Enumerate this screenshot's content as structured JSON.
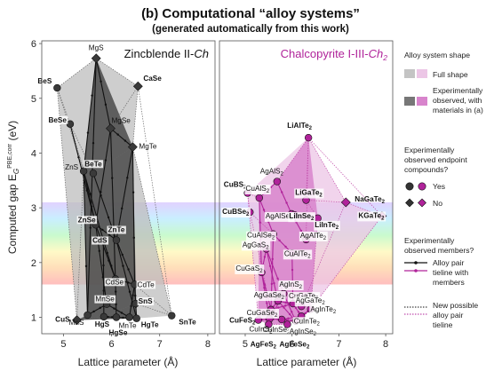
{
  "title": "(b) Computational “alloy systems”",
  "subtitle": "(generated automatically from this work)",
  "chart_data": [
    {
      "type": "scatter",
      "panel_title": "Zincblende II-Ch",
      "panel_title_main": "Zincblende II-",
      "panel_title_ital": "Ch",
      "panel_title_sub": "",
      "xlabel": "Lattice parameter (Å)",
      "ylabel": "Computed gap E",
      "ylabel_sub": "G",
      "ylabel_sup": "PBE,corr",
      "ylabel_unit": " (eV)",
      "xlim": [
        4.55,
        8.15
      ],
      "ylim": [
        0.7,
        6.05
      ],
      "xticks": [
        "5",
        "6",
        "7",
        "8"
      ],
      "yticks": [
        "1",
        "2",
        "3",
        "4",
        "5",
        "6"
      ],
      "grid": false,
      "shape_color": "#5a5a5a",
      "full_shape_color": "#bdbdbd",
      "observed_shape_color": "#4a4a4a",
      "points": [
        {
          "name": "MgS",
          "x": 5.68,
          "y": 5.73,
          "marker": "diamond",
          "bold": false,
          "label": "MgS"
        },
        {
          "name": "BeS",
          "x": 4.87,
          "y": 5.19,
          "marker": "circle",
          "bold": true,
          "label": "BeS"
        },
        {
          "name": "CaSe",
          "x": 6.55,
          "y": 5.22,
          "marker": "diamond",
          "bold": true,
          "label": "CaSe"
        },
        {
          "name": "BeSe",
          "x": 5.14,
          "y": 4.53,
          "marker": "circle",
          "bold": true,
          "label": "BeSe"
        },
        {
          "name": "MgSe",
          "x": 5.98,
          "y": 4.45,
          "marker": "diamond",
          "bold": false,
          "label": "MgSe"
        },
        {
          "name": "MgTe",
          "x": 6.44,
          "y": 4.11,
          "marker": "diamond",
          "bold": false,
          "label": "MgTe"
        },
        {
          "name": "BeTe",
          "x": 5.62,
          "y": 3.63,
          "marker": "circle",
          "bold": true,
          "label": "BeTe"
        },
        {
          "name": "ZnS",
          "x": 5.42,
          "y": 3.67,
          "marker": "circle",
          "bold": false,
          "label": "ZnS"
        },
        {
          "name": "ZnSe",
          "x": 5.67,
          "y": 2.69,
          "marker": "circle",
          "bold": true,
          "label": "ZnSe"
        },
        {
          "name": "ZnTe",
          "x": 6.1,
          "y": 2.41,
          "marker": "circle",
          "bold": true,
          "label": "ZnTe"
        },
        {
          "name": "CdS",
          "x": 5.83,
          "y": 2.41,
          "marker": "circle",
          "bold": true,
          "label": "CdS"
        },
        {
          "name": "CdTe",
          "x": 6.48,
          "y": 1.6,
          "marker": "circle",
          "bold": false,
          "label": "CdTe"
        },
        {
          "name": "CdSe",
          "x": 6.08,
          "y": 1.7,
          "marker": "circle",
          "bold": false,
          "label": "CdSe"
        },
        {
          "name": "MnSe",
          "x": 5.9,
          "y": 1.24,
          "marker": "circle",
          "bold": false,
          "label": "MnSe"
        },
        {
          "name": "SnS",
          "x": 6.5,
          "y": 1.25,
          "marker": "circle",
          "bold": true,
          "label": "SnS"
        },
        {
          "name": "CuS",
          "x": 5.28,
          "y": 0.95,
          "marker": "diamond",
          "bold": true,
          "label": "CuS"
        },
        {
          "name": "MnS",
          "x": 5.5,
          "y": 1.04,
          "marker": "circle",
          "bold": false,
          "label": "MnS"
        },
        {
          "name": "HgS",
          "x": 5.84,
          "y": 1.01,
          "marker": "circle",
          "bold": true,
          "label": "HgS"
        },
        {
          "name": "HgSe",
          "x": 6.1,
          "y": 1.0,
          "marker": "circle",
          "bold": true,
          "label": "HgSe"
        },
        {
          "name": "MnTe",
          "x": 6.37,
          "y": 1.0,
          "marker": "circle",
          "bold": false,
          "label": "MnTe"
        },
        {
          "name": "HgTe",
          "x": 6.52,
          "y": 0.98,
          "marker": "circle",
          "bold": true,
          "label": "HgTe"
        },
        {
          "name": "SnTe",
          "x": 7.25,
          "y": 1.03,
          "marker": "circle",
          "bold": true,
          "label": "SnTe"
        }
      ],
      "full_shape": [
        "MgS",
        "CaSe",
        "MgTe",
        "SnTe",
        "HgTe",
        "CuS",
        "BeS"
      ],
      "observed_shape": [
        "MgS",
        "MgTe",
        "HgTe",
        "CuS",
        "MnS",
        "ZnS"
      ],
      "tielines": [
        [
          "MgS",
          "MgSe"
        ],
        [
          "MgSe",
          "MgTe"
        ],
        [
          "MgS",
          "MnS"
        ],
        [
          "ZnS",
          "ZnSe"
        ],
        [
          "ZnSe",
          "ZnTe"
        ],
        [
          "ZnS",
          "CdS"
        ],
        [
          "CdS",
          "CdSe"
        ],
        [
          "CdSe",
          "CdTe"
        ],
        [
          "ZnTe",
          "CdTe"
        ],
        [
          "ZnSe",
          "CdSe"
        ],
        [
          "ZnTe",
          "HgTe"
        ],
        [
          "CdTe",
          "HgTe"
        ],
        [
          "HgS",
          "HgSe"
        ],
        [
          "HgSe",
          "HgTe"
        ],
        [
          "CdS",
          "HgS"
        ],
        [
          "CdSe",
          "HgSe"
        ],
        [
          "MnS",
          "MnSe"
        ],
        [
          "MnSe",
          "MnTe"
        ],
        [
          "ZnSe",
          "MnSe"
        ],
        [
          "MgTe",
          "CdTe"
        ],
        [
          "MgTe",
          "ZnTe"
        ],
        [
          "MgSe",
          "ZnSe"
        ],
        [
          "ZnS",
          "MnS"
        ],
        [
          "CdTe",
          "MnTe"
        ],
        [
          "BeTe",
          "ZnTe"
        ],
        [
          "BeSe",
          "ZnSe"
        ],
        [
          "MgSe",
          "CdSe"
        ],
        [
          "MgS",
          "ZnS"
        ]
      ],
      "possible": [
        [
          "BeS",
          "BeSe"
        ],
        [
          "BeSe",
          "BeTe"
        ],
        [
          "BeS",
          "MgS"
        ],
        [
          "CaSe",
          "MgSe"
        ],
        [
          "CaSe",
          "MgTe"
        ],
        [
          "BeS",
          "ZnS"
        ],
        [
          "BeTe",
          "MgTe"
        ],
        [
          "CaSe",
          "SnTe"
        ],
        [
          "SnS",
          "SnTe"
        ],
        [
          "CuS",
          "HgS"
        ],
        [
          "BeS",
          "CuS"
        ],
        [
          "MgTe",
          "SnTe"
        ],
        [
          "CdTe",
          "SnTe"
        ],
        [
          "BeSe",
          "CdSe"
        ],
        [
          "MgS",
          "CaSe"
        ],
        [
          "BeTe",
          "CdTe"
        ],
        [
          "CuS",
          "ZnS"
        ],
        [
          "SnS",
          "HgS"
        ]
      ]
    },
    {
      "type": "scatter",
      "panel_title": "Chalcopyrite I-III-Ch2",
      "panel_title_main": "Chalcopyrite I-III-",
      "panel_title_ital": "Ch",
      "panel_title_sub": "2",
      "xlabel": "Lattice parameter (Å)",
      "xlim": [
        4.45,
        8.15
      ],
      "ylim": [
        0.7,
        6.05
      ],
      "xticks": [
        "5",
        "6",
        "7",
        "8"
      ],
      "grid": false,
      "shape_color": "#b0239a",
      "full_shape_color": "#ecc6e6",
      "observed_shape_color": "#d884cc",
      "points": [
        {
          "name": "LiAlTe2",
          "x": 6.35,
          "y": 4.28,
          "marker": "circle",
          "bold": true,
          "label": "LiAlTe",
          "sub": "2"
        },
        {
          "name": "AgAlS2",
          "x": 5.68,
          "y": 3.48,
          "marker": "circle",
          "bold": false,
          "label": "AgAlS",
          "sub": "2"
        },
        {
          "name": "CuBS2",
          "x": 5.05,
          "y": 3.27,
          "marker": "circle",
          "bold": true,
          "label": "CuBS",
          "sub": "2"
        },
        {
          "name": "CuAlS2",
          "x": 5.3,
          "y": 3.18,
          "marker": "circle",
          "bold": false,
          "label": "CuAlS",
          "sub": "2"
        },
        {
          "name": "LiGaTe2",
          "x": 6.3,
          "y": 3.14,
          "marker": "circle",
          "bold": true,
          "label": "LiGaTe",
          "sub": "2"
        },
        {
          "name": "NaGaTe2",
          "x": 7.15,
          "y": 3.1,
          "marker": "diamond",
          "bold": true,
          "label": "NaGaTe",
          "sub": "2"
        },
        {
          "name": "CuBSe2",
          "x": 5.1,
          "y": 2.92,
          "marker": "circle",
          "bold": true,
          "label": "CuBSe",
          "sub": "2"
        },
        {
          "name": "AgAlSe2",
          "x": 5.99,
          "y": 2.89,
          "marker": "circle",
          "bold": false,
          "label": "AgAlSe",
          "sub": "2"
        },
        {
          "name": "LiInSe2",
          "x": 6.05,
          "y": 2.87,
          "marker": "circle",
          "bold": true,
          "label": "LiInSe",
          "sub": "2"
        },
        {
          "name": "LiInTe2",
          "x": 6.55,
          "y": 2.81,
          "marker": "circle",
          "bold": true,
          "label": "LiInTe",
          "sub": "2"
        },
        {
          "name": "KGaTe2",
          "x": 7.92,
          "y": 2.85,
          "marker": "diamond",
          "bold": true,
          "label": "KGaTe",
          "sub": "2"
        },
        {
          "name": "CuAlSe2",
          "x": 5.6,
          "y": 2.52,
          "marker": "circle",
          "bold": false,
          "label": "CuAlSe",
          "sub": "2"
        },
        {
          "name": "AgAlTe2",
          "x": 6.3,
          "y": 2.42,
          "marker": "circle",
          "bold": false,
          "label": "AgAlTe",
          "sub": "2"
        },
        {
          "name": "AgGaS2",
          "x": 5.45,
          "y": 2.25,
          "marker": "circle",
          "bold": false,
          "label": "AgGaS",
          "sub": "2"
        },
        {
          "name": "CuAlTe2",
          "x": 6.0,
          "y": 2.17,
          "marker": "circle",
          "bold": false,
          "label": "CuAlTe",
          "sub": "2"
        },
        {
          "name": "CuGaS2",
          "x": 5.35,
          "y": 1.82,
          "marker": "circle",
          "bold": false,
          "label": "CuGaS",
          "sub": "2"
        },
        {
          "name": "AgInS2",
          "x": 5.82,
          "y": 1.43,
          "marker": "circle",
          "bold": false,
          "label": "AgInS",
          "sub": "2"
        },
        {
          "name": "CuGaTe2",
          "x": 6.02,
          "y": 1.25,
          "marker": "circle",
          "bold": false,
          "label": "CuGaTe",
          "sub": "2"
        },
        {
          "name": "AgGaSe2",
          "x": 5.7,
          "y": 1.3,
          "marker": "circle",
          "bold": false,
          "label": "AgGaSe",
          "sub": "2"
        },
        {
          "name": "AgGaTe2",
          "x": 6.2,
          "y": 1.2,
          "marker": "circle",
          "bold": false,
          "label": "AgGaTe",
          "sub": "2"
        },
        {
          "name": "CuGaSe2",
          "x": 5.55,
          "y": 1.14,
          "marker": "circle",
          "bold": false,
          "label": "CuGaSe",
          "sub": "2"
        },
        {
          "name": "AgInTe2",
          "x": 6.4,
          "y": 1.15,
          "marker": "circle",
          "bold": false,
          "label": "AgInTe",
          "sub": "2"
        },
        {
          "name": "CuInTe2",
          "x": 6.2,
          "y": 1.02,
          "marker": "circle",
          "bold": false,
          "label": "CuInTe",
          "sub": "2"
        },
        {
          "name": "CuFeS2",
          "x": 5.28,
          "y": 0.95,
          "marker": "circle",
          "bold": true,
          "label": "CuFeS",
          "sub": "2"
        },
        {
          "name": "CuInS2",
          "x": 5.52,
          "y": 0.97,
          "marker": "circle",
          "bold": false,
          "label": "CuInS",
          "sub": "2"
        },
        {
          "name": "CuInSe2",
          "x": 5.78,
          "y": 0.96,
          "marker": "circle",
          "bold": false,
          "label": "CuInSe",
          "sub": "2"
        },
        {
          "name": "AgInSe2",
          "x": 6.08,
          "y": 0.93,
          "marker": "circle",
          "bold": false,
          "label": "AgInSe",
          "sub": "2"
        },
        {
          "name": "AgFeS2",
          "x": 5.5,
          "y": 0.87,
          "marker": "circle",
          "bold": true,
          "label": "AgFeS",
          "sub": "2"
        },
        {
          "name": "AgFeSe2",
          "x": 5.9,
          "y": 0.87,
          "marker": "circle",
          "bold": true,
          "label": "AgFeSe",
          "sub": "2"
        }
      ],
      "full_shape": [
        "LiAlTe2",
        "NaGaTe2",
        "KGaTe2",
        "AgInTe2",
        "AgFeSe2",
        "AgFeS2",
        "CuFeS2",
        "CuBS2"
      ],
      "observed_shape": [
        "AgAlS2",
        "LiAlTe2",
        "LiInTe2",
        "AgInTe2",
        "AgFeSe2",
        "AgFeS2",
        "CuFeS2",
        "CuAlS2"
      ],
      "tielines": [
        [
          "CuAlS2",
          "CuAlSe2"
        ],
        [
          "CuAlSe2",
          "CuAlTe2"
        ],
        [
          "CuGaS2",
          "CuGaSe2"
        ],
        [
          "CuGaSe2",
          "CuGaTe2"
        ],
        [
          "CuInS2",
          "CuInSe2"
        ],
        [
          "CuInSe2",
          "CuInTe2"
        ],
        [
          "AgGaS2",
          "AgGaSe2"
        ],
        [
          "AgGaSe2",
          "AgGaTe2"
        ],
        [
          "AgInS2",
          "AgInSe2"
        ],
        [
          "AgInSe2",
          "AgInTe2"
        ],
        [
          "AgAlS2",
          "AgAlSe2"
        ],
        [
          "AgAlSe2",
          "AgAlTe2"
        ],
        [
          "CuAlS2",
          "CuGaS2"
        ],
        [
          "CuGaS2",
          "CuInS2"
        ],
        [
          "CuAlSe2",
          "CuGaSe2"
        ],
        [
          "CuGaSe2",
          "CuInSe2"
        ],
        [
          "CuAlTe2",
          "CuGaTe2"
        ],
        [
          "CuGaTe2",
          "CuInTe2"
        ],
        [
          "AgGaS2",
          "AgInS2"
        ],
        [
          "AgGaSe2",
          "AgInSe2"
        ],
        [
          "CuGaS2",
          "AgGaS2"
        ],
        [
          "CuInSe2",
          "AgInSe2"
        ],
        [
          "CuInS2",
          "AgInS2"
        ],
        [
          "CuGaSe2",
          "AgGaSe2"
        ],
        [
          "CuFeS2",
          "CuInS2"
        ],
        [
          "CuAlS2",
          "AgAlS2"
        ],
        [
          "CuInTe2",
          "AgInTe2"
        ],
        [
          "AgFeS2",
          "CuInS2"
        ]
      ],
      "possible": [
        [
          "LiAlTe2",
          "AgAlS2"
        ],
        [
          "LiAlTe2",
          "LiGaTe2"
        ],
        [
          "LiGaTe2",
          "NaGaTe2"
        ],
        [
          "NaGaTe2",
          "KGaTe2"
        ],
        [
          "LiInSe2",
          "LiInTe2"
        ],
        [
          "LiAlTe2",
          "NaGaTe2"
        ],
        [
          "CuBS2",
          "CuBSe2"
        ],
        [
          "CuBS2",
          "CuAlS2"
        ],
        [
          "CuBSe2",
          "CuAlSe2"
        ],
        [
          "LiGaTe2",
          "LiInTe2"
        ],
        [
          "KGaTe2",
          "AgInTe2"
        ],
        [
          "LiAlTe2",
          "KGaTe2"
        ],
        [
          "AgFeS2",
          "AgFeSe2"
        ],
        [
          "CuBS2",
          "CuFeS2"
        ],
        [
          "LiInTe2",
          "AgInTe2"
        ],
        [
          "NaGaTe2",
          "AgGaTe2"
        ],
        [
          "CuBSe2",
          "CuGaSe2"
        ],
        [
          "LiAlTe2",
          "AgAlTe2"
        ]
      ]
    }
  ],
  "legend": {
    "shape_title": "Alloy system shape",
    "full_shape": "Full shape",
    "observed_shape": "Experimentally observed, with materials in (a)",
    "observed_shape_lines": [
      "Experimentally",
      "observed, with",
      "materials in (a)"
    ],
    "endpoint_title_lines": [
      "Experimentally",
      "observed endpoint",
      "compounds?"
    ],
    "yes": "Yes",
    "no": "No",
    "members_title_lines": [
      "Experimentally",
      "observed members?"
    ],
    "tieline_lines": [
      "Alloy pair",
      "tieline with",
      "members"
    ],
    "possible_lines": [
      "New possible",
      "alloy pair",
      "tieline"
    ]
  },
  "spectrum_band": {
    "ymin": 1.6,
    "ymax": 3.1
  }
}
